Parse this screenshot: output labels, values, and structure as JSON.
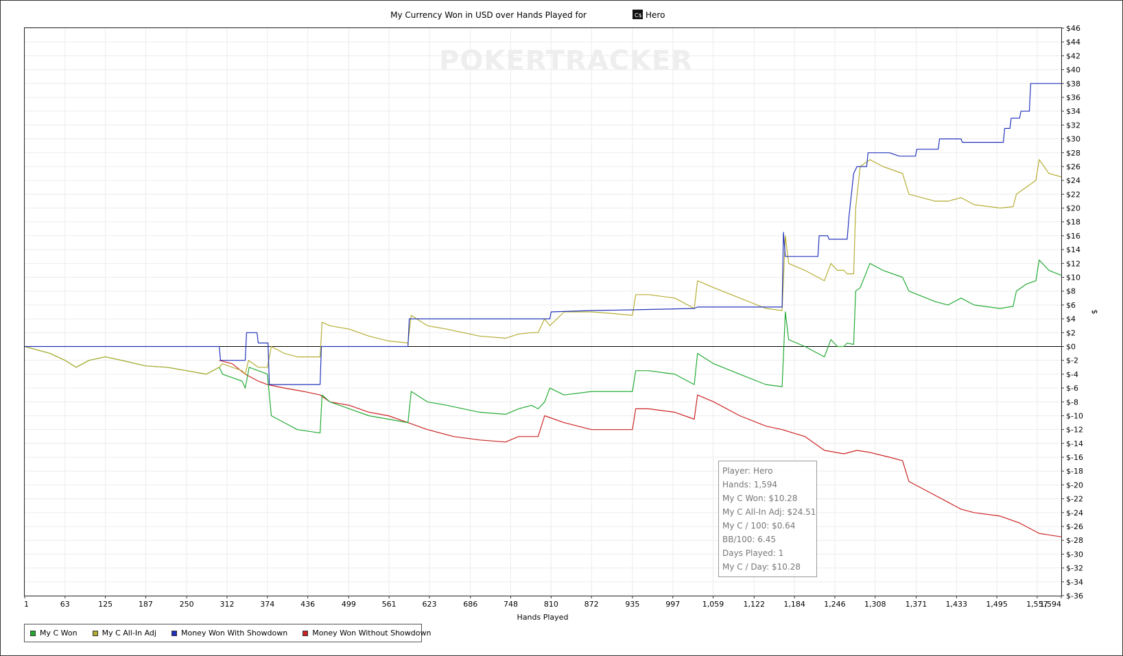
{
  "chart_data": {
    "type": "line",
    "title": "My Currency Won in USD over Hands Played for",
    "title_player": "Hero",
    "xlabel": "Hands Played",
    "ylabel": "$",
    "x_ticks": [
      "1",
      "63",
      "125",
      "187",
      "250",
      "312",
      "374",
      "436",
      "499",
      "561",
      "623",
      "686",
      "748",
      "810",
      "872",
      "935",
      "997",
      "1,059",
      "1,122",
      "1,184",
      "1,246",
      "1,308",
      "1,371",
      "1,433",
      "1,495",
      "1,557",
      "1,594"
    ],
    "y_ticks": [
      "$46",
      "$44",
      "$42",
      "$40",
      "$38",
      "$36",
      "$34",
      "$32",
      "$30",
      "$28",
      "$26",
      "$24",
      "$22",
      "$20",
      "$18",
      "$16",
      "$14",
      "$12",
      "$10",
      "$8",
      "$6",
      "$4",
      "$2",
      "$0",
      "$-2",
      "$-4",
      "$-6",
      "$-8",
      "$-10",
      "$-12",
      "$-14",
      "$-16",
      "$-18",
      "$-20",
      "$-22",
      "$-24",
      "$-26",
      "$-28",
      "$-30",
      "$-32",
      "$-34",
      "$-36"
    ],
    "xlim": [
      1,
      1594
    ],
    "ylim": [
      -36,
      46
    ],
    "grid": true,
    "legend_position": "bottom-left",
    "series": [
      {
        "name": "My C Won",
        "color": "#22aa33",
        "points": [
          [
            1,
            0
          ],
          [
            40,
            -1
          ],
          [
            63,
            -2
          ],
          [
            80,
            -3
          ],
          [
            100,
            -2
          ],
          [
            125,
            -1.5
          ],
          [
            150,
            -2
          ],
          [
            187,
            -2.8
          ],
          [
            220,
            -3
          ],
          [
            250,
            -3.5
          ],
          [
            280,
            -4
          ],
          [
            300,
            -3
          ],
          [
            305,
            -4
          ],
          [
            320,
            -4.5
          ],
          [
            335,
            -5
          ],
          [
            340,
            -6
          ],
          [
            346,
            -3
          ],
          [
            360,
            -3.5
          ],
          [
            374,
            -4
          ],
          [
            380,
            -10
          ],
          [
            400,
            -11
          ],
          [
            420,
            -12
          ],
          [
            455,
            -12.5
          ],
          [
            458,
            -7
          ],
          [
            470,
            -8
          ],
          [
            500,
            -9
          ],
          [
            530,
            -10
          ],
          [
            560,
            -10.5
          ],
          [
            590,
            -11
          ],
          [
            595,
            -6.5
          ],
          [
            620,
            -8
          ],
          [
            650,
            -8.5
          ],
          [
            700,
            -9.5
          ],
          [
            740,
            -9.8
          ],
          [
            760,
            -9
          ],
          [
            780,
            -8.5
          ],
          [
            790,
            -9
          ],
          [
            800,
            -8
          ],
          [
            808,
            -6
          ],
          [
            830,
            -7
          ],
          [
            872,
            -6.5
          ],
          [
            900,
            -6.5
          ],
          [
            935,
            -6.5
          ],
          [
            940,
            -3.5
          ],
          [
            960,
            -3.5
          ],
          [
            1000,
            -4
          ],
          [
            1030,
            -5.5
          ],
          [
            1035,
            -1
          ],
          [
            1060,
            -2.5
          ],
          [
            1100,
            -4
          ],
          [
            1140,
            -5.5
          ],
          [
            1165,
            -5.8
          ],
          [
            1170,
            5
          ],
          [
            1175,
            1
          ],
          [
            1200,
            0
          ],
          [
            1230,
            -1.5
          ],
          [
            1240,
            1
          ],
          [
            1250,
            0
          ],
          [
            1260,
            0
          ],
          [
            1265,
            0.5
          ],
          [
            1275,
            0.3
          ],
          [
            1278,
            8
          ],
          [
            1285,
            8.5
          ],
          [
            1300,
            12
          ],
          [
            1320,
            11
          ],
          [
            1350,
            10
          ],
          [
            1360,
            8
          ],
          [
            1400,
            6.5
          ],
          [
            1420,
            6
          ],
          [
            1440,
            7
          ],
          [
            1460,
            6
          ],
          [
            1500,
            5.5
          ],
          [
            1520,
            5.8
          ],
          [
            1525,
            8
          ],
          [
            1540,
            9
          ],
          [
            1555,
            9.5
          ],
          [
            1560,
            12.5
          ],
          [
            1575,
            11
          ],
          [
            1594,
            10.28
          ]
        ]
      },
      {
        "name": "My C All-In Adj",
        "color": "#b5ad33",
        "points": [
          [
            1,
            0
          ],
          [
            40,
            -1
          ],
          [
            63,
            -2
          ],
          [
            80,
            -3
          ],
          [
            100,
            -2
          ],
          [
            125,
            -1.5
          ],
          [
            150,
            -2
          ],
          [
            187,
            -2.8
          ],
          [
            220,
            -3
          ],
          [
            250,
            -3.5
          ],
          [
            280,
            -4
          ],
          [
            300,
            -3
          ],
          [
            305,
            -2.5
          ],
          [
            320,
            -3
          ],
          [
            335,
            -3.5
          ],
          [
            340,
            -4
          ],
          [
            345,
            -2
          ],
          [
            360,
            -3
          ],
          [
            374,
            -3
          ],
          [
            380,
            0
          ],
          [
            400,
            -1
          ],
          [
            420,
            -1.5
          ],
          [
            455,
            -1.5
          ],
          [
            458,
            3.5
          ],
          [
            470,
            3
          ],
          [
            500,
            2.5
          ],
          [
            530,
            1.5
          ],
          [
            560,
            0.8
          ],
          [
            590,
            0.5
          ],
          [
            595,
            4.5
          ],
          [
            620,
            3
          ],
          [
            650,
            2.5
          ],
          [
            700,
            1.5
          ],
          [
            740,
            1.2
          ],
          [
            760,
            1.8
          ],
          [
            780,
            2
          ],
          [
            790,
            2
          ],
          [
            800,
            4
          ],
          [
            808,
            3
          ],
          [
            830,
            5
          ],
          [
            872,
            5
          ],
          [
            900,
            4.8
          ],
          [
            935,
            4.5
          ],
          [
            940,
            7.5
          ],
          [
            960,
            7.5
          ],
          [
            1000,
            7
          ],
          [
            1030,
            5.5
          ],
          [
            1035,
            9.5
          ],
          [
            1060,
            8.5
          ],
          [
            1100,
            7
          ],
          [
            1140,
            5.5
          ],
          [
            1165,
            5.2
          ],
          [
            1170,
            16
          ],
          [
            1175,
            12
          ],
          [
            1200,
            11
          ],
          [
            1230,
            9.5
          ],
          [
            1240,
            12
          ],
          [
            1250,
            11
          ],
          [
            1260,
            11
          ],
          [
            1265,
            10.5
          ],
          [
            1275,
            10.5
          ],
          [
            1278,
            20
          ],
          [
            1285,
            26
          ],
          [
            1300,
            27
          ],
          [
            1320,
            26
          ],
          [
            1350,
            25
          ],
          [
            1360,
            22
          ],
          [
            1400,
            21
          ],
          [
            1420,
            21
          ],
          [
            1440,
            21.5
          ],
          [
            1460,
            20.5
          ],
          [
            1500,
            20
          ],
          [
            1520,
            20.2
          ],
          [
            1525,
            22
          ],
          [
            1540,
            23
          ],
          [
            1555,
            24
          ],
          [
            1560,
            27
          ],
          [
            1575,
            25
          ],
          [
            1594,
            24.51
          ]
        ]
      },
      {
        "name": "Money Won With Showdown",
        "color": "#2233bb",
        "points": [
          [
            1,
            0
          ],
          [
            300,
            0
          ],
          [
            302,
            -2
          ],
          [
            340,
            -2
          ],
          [
            342,
            2
          ],
          [
            358,
            2
          ],
          [
            360,
            0.5
          ],
          [
            375,
            0.5
          ],
          [
            377,
            -5.5
          ],
          [
            455,
            -5.5
          ],
          [
            457,
            0
          ],
          [
            590,
            0
          ],
          [
            592,
            4
          ],
          [
            808,
            4
          ],
          [
            810,
            5
          ],
          [
            872,
            5.2
          ],
          [
            935,
            5.3
          ],
          [
            1030,
            5.5
          ],
          [
            1035,
            5.7
          ],
          [
            1165,
            5.7
          ],
          [
            1167,
            16.5
          ],
          [
            1170,
            13
          ],
          [
            1220,
            13
          ],
          [
            1222,
            16
          ],
          [
            1235,
            16
          ],
          [
            1237,
            15.5
          ],
          [
            1265,
            15.5
          ],
          [
            1268,
            19
          ],
          [
            1275,
            25
          ],
          [
            1280,
            26
          ],
          [
            1295,
            26
          ],
          [
            1297,
            28
          ],
          [
            1330,
            28
          ],
          [
            1345,
            27.5
          ],
          [
            1370,
            27.5
          ],
          [
            1372,
            28.5
          ],
          [
            1405,
            28.5
          ],
          [
            1407,
            30
          ],
          [
            1440,
            30
          ],
          [
            1442,
            29.5
          ],
          [
            1505,
            29.5
          ],
          [
            1507,
            31.5
          ],
          [
            1515,
            31.5
          ],
          [
            1517,
            33
          ],
          [
            1530,
            33
          ],
          [
            1532,
            34
          ],
          [
            1545,
            34
          ],
          [
            1547,
            38
          ],
          [
            1594,
            38
          ]
        ]
      },
      {
        "name": "Money Won Without Showdown",
        "color": "#cc2222",
        "points": [
          [
            300,
            -2
          ],
          [
            320,
            -2.5
          ],
          [
            340,
            -4
          ],
          [
            360,
            -5
          ],
          [
            374,
            -5.5
          ],
          [
            400,
            -6
          ],
          [
            430,
            -6.5
          ],
          [
            455,
            -7
          ],
          [
            470,
            -8
          ],
          [
            500,
            -8.5
          ],
          [
            530,
            -9.5
          ],
          [
            560,
            -10
          ],
          [
            590,
            -11
          ],
          [
            620,
            -12
          ],
          [
            660,
            -13
          ],
          [
            700,
            -13.5
          ],
          [
            740,
            -13.8
          ],
          [
            760,
            -13
          ],
          [
            790,
            -13
          ],
          [
            800,
            -10
          ],
          [
            830,
            -11
          ],
          [
            872,
            -12
          ],
          [
            900,
            -12
          ],
          [
            935,
            -12
          ],
          [
            940,
            -9
          ],
          [
            960,
            -9
          ],
          [
            1000,
            -9.5
          ],
          [
            1030,
            -10.5
          ],
          [
            1035,
            -7
          ],
          [
            1060,
            -8
          ],
          [
            1100,
            -10
          ],
          [
            1140,
            -11.5
          ],
          [
            1165,
            -12
          ],
          [
            1200,
            -13
          ],
          [
            1230,
            -15
          ],
          [
            1260,
            -15.5
          ],
          [
            1280,
            -15
          ],
          [
            1300,
            -15.3
          ],
          [
            1330,
            -16
          ],
          [
            1350,
            -16.5
          ],
          [
            1360,
            -19.5
          ],
          [
            1390,
            -21
          ],
          [
            1420,
            -22.5
          ],
          [
            1440,
            -23.5
          ],
          [
            1460,
            -24
          ],
          [
            1500,
            -24.5
          ],
          [
            1530,
            -25.5
          ],
          [
            1560,
            -27
          ],
          [
            1594,
            -27.5
          ]
        ]
      }
    ]
  },
  "tooltip": {
    "player": "Player: Hero",
    "hands": "Hands: 1,594",
    "won": "My C Won: $10.28",
    "allin": "My C All-In Adj: $24.51",
    "per100": "My C / 100: $0.64",
    "bb100": "BB/100: 6.45",
    "days": "Days Played: 1",
    "perday": "My C / Day: $10.28"
  },
  "watermark": "POKERTRACKER",
  "title_icon": "player-card-icon"
}
